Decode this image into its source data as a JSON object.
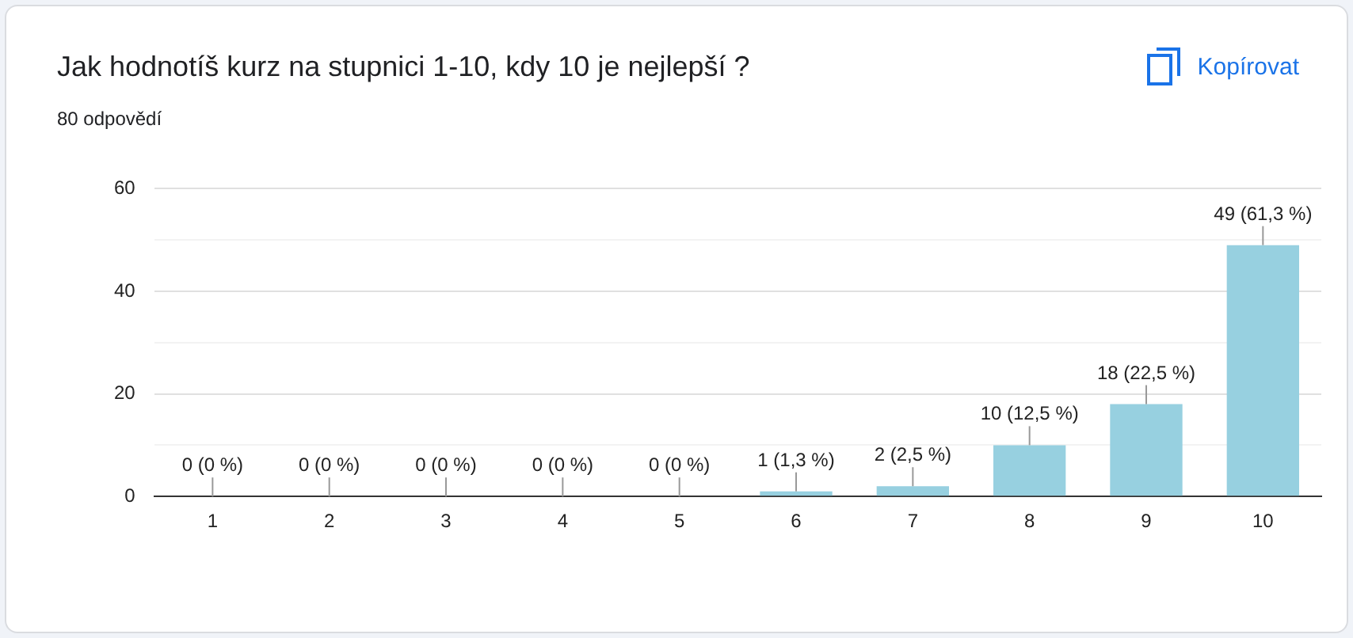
{
  "chart_data": {
    "type": "bar",
    "title": "Jak hodnotíš kurz na stupnici 1-10, kdy 10 je nejlepší ?",
    "subtitle": "80 odpovědí",
    "annotations": [
      "Kopírovat"
    ],
    "categories": [
      "1",
      "2",
      "3",
      "4",
      "5",
      "6",
      "7",
      "8",
      "9",
      "10"
    ],
    "values": [
      0,
      0,
      0,
      0,
      0,
      1,
      2,
      10,
      18,
      49
    ],
    "value_labels": [
      "0 (0 %)",
      "0 (0 %)",
      "0 (0 %)",
      "0 (0 %)",
      "0 (0 %)",
      "1 (1,3 %)",
      "2 (2,5 %)",
      "10 (12,5 %)",
      "18 (22,5 %)",
      "49 (61,3 %)"
    ],
    "color": "#97d0e0",
    "ylim": [
      0,
      60
    ],
    "yticks": [
      0,
      {
        "value": 10,
        "label": null
      },
      20,
      {
        "value": 30,
        "label": null
      },
      40,
      {
        "value": 50,
        "label": null
      },
      60
    ],
    "grid": "y",
    "legend": false
  }
}
